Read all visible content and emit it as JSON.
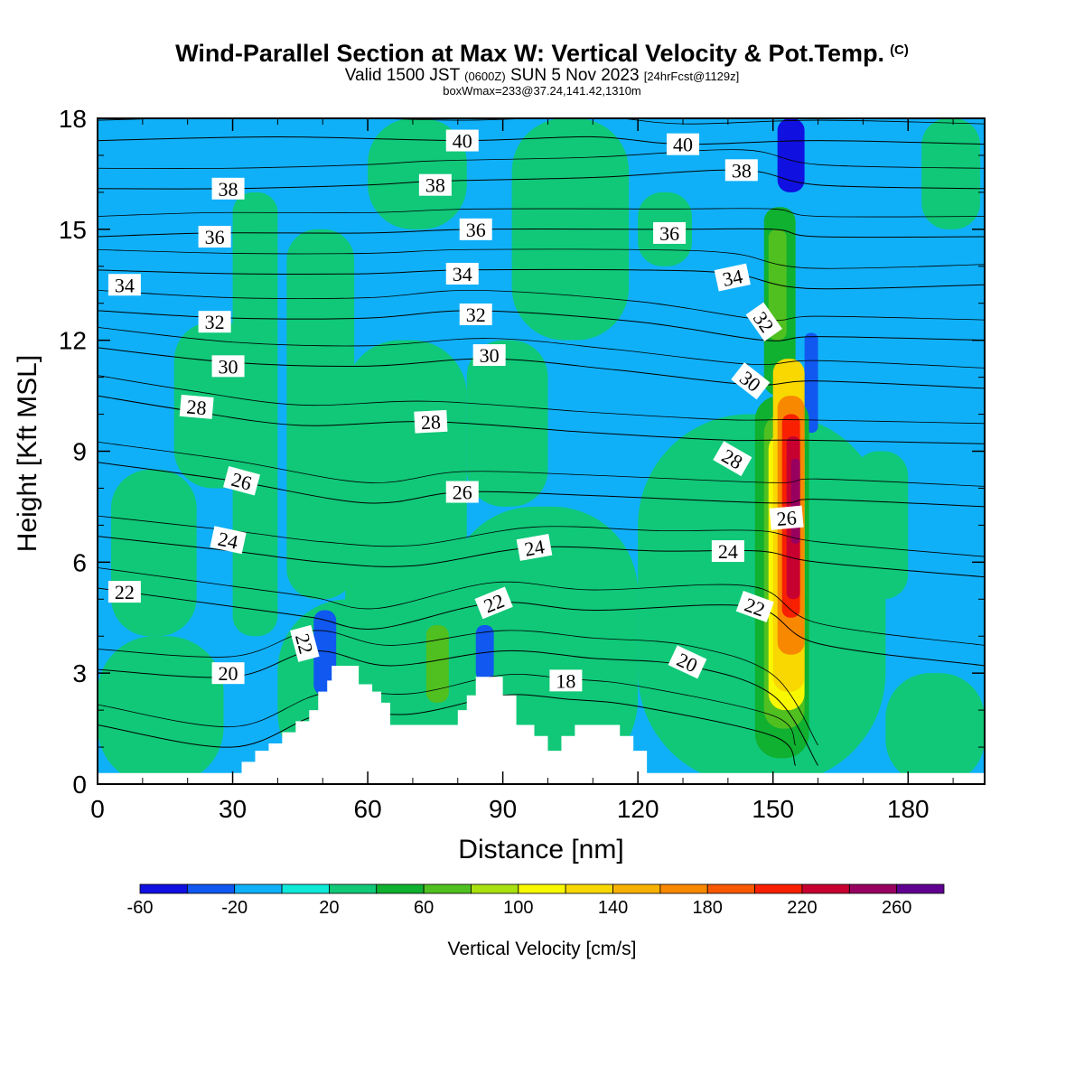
{
  "titles": {
    "main": "Wind-Parallel Section at Max W: Vertical Velocity & Pot.Temp.",
    "copyright": "(C)",
    "valid_prefix": "Valid 1500 JST",
    "valid_utc": "(0600Z)",
    "valid_date": "SUN 5 Nov 2023",
    "forecast": "[24hrFcst@1129z]",
    "box_info": "boxWmax=233@37.24,141.42,1310m"
  },
  "chart_data": {
    "type": "heatmap",
    "xlabel": "Distance [nm]",
    "ylabel": "Height [Kft MSL]",
    "xlim": [
      0,
      197
    ],
    "ylim": [
      0,
      18
    ],
    "x_ticks": [
      0,
      30,
      60,
      90,
      120,
      150,
      180
    ],
    "y_ticks": [
      0,
      3,
      6,
      9,
      12,
      15,
      18
    ],
    "colorbar": {
      "label": "Vertical Velocity [cm/s]",
      "levels": [
        -60,
        -40,
        -20,
        0,
        20,
        40,
        60,
        80,
        100,
        120,
        140,
        160,
        180,
        200,
        220,
        240,
        260,
        280
      ],
      "tick_labels": [
        -60,
        -20,
        20,
        60,
        100,
        140,
        180,
        220,
        260
      ],
      "colors": [
        "#1010e0",
        "#1058f0",
        "#10b0f8",
        "#10e8d8",
        "#10c878",
        "#10b030",
        "#50c020",
        "#a8e010",
        "#f8f800",
        "#f8d800",
        "#f8b000",
        "#f88800",
        "#f85800",
        "#f82000",
        "#c80030",
        "#980060",
        "#600090"
      ]
    },
    "terrain": [
      [
        0,
        0.3
      ],
      [
        30,
        0.3
      ],
      [
        32,
        0.6
      ],
      [
        35,
        0.9
      ],
      [
        38,
        1.1
      ],
      [
        41,
        1.4
      ],
      [
        44,
        1.7
      ],
      [
        47,
        2.0
      ],
      [
        49,
        2.5
      ],
      [
        51,
        2.8
      ],
      [
        52,
        3.2
      ],
      [
        56,
        3.2
      ],
      [
        58,
        2.7
      ],
      [
        61,
        2.5
      ],
      [
        63,
        2.2
      ],
      [
        65,
        1.6
      ],
      [
        70,
        1.6
      ],
      [
        75,
        1.6
      ],
      [
        78,
        1.6
      ],
      [
        80,
        2.0
      ],
      [
        82,
        2.4
      ],
      [
        84,
        2.9
      ],
      [
        88,
        2.9
      ],
      [
        90,
        2.4
      ],
      [
        93,
        1.6
      ],
      [
        97,
        1.3
      ],
      [
        100,
        0.9
      ],
      [
        103,
        1.3
      ],
      [
        106,
        1.6
      ],
      [
        113,
        1.6
      ],
      [
        116,
        1.3
      ],
      [
        119,
        0.9
      ],
      [
        122,
        0.3
      ],
      [
        197,
        0.3
      ]
    ],
    "vertical_velocity_cells": [
      {
        "x": [
          0,
          197
        ],
        "y": [
          0,
          18
        ],
        "w": -20
      },
      {
        "x": [
          0,
          28
        ],
        "y": [
          0,
          4
        ],
        "w": 20
      },
      {
        "x": [
          3,
          22
        ],
        "y": [
          4,
          8.5
        ],
        "w": 20
      },
      {
        "x": [
          17,
          36
        ],
        "y": [
          8,
          12.5
        ],
        "w": 20
      },
      {
        "x": [
          30,
          40
        ],
        "y": [
          4,
          16
        ],
        "w": 20
      },
      {
        "x": [
          40,
          75
        ],
        "y": [
          0,
          5
        ],
        "w": 20
      },
      {
        "x": [
          42,
          57
        ],
        "y": [
          5,
          15
        ],
        "w": 20
      },
      {
        "x": [
          55,
          82
        ],
        "y": [
          0,
          12
        ],
        "w": 20
      },
      {
        "x": [
          78,
          120
        ],
        "y": [
          0,
          7.5
        ],
        "w": 20
      },
      {
        "x": [
          82,
          100
        ],
        "y": [
          7.5,
          12
        ],
        "w": 20
      },
      {
        "x": [
          92,
          118
        ],
        "y": [
          12,
          18
        ],
        "w": 20
      },
      {
        "x": [
          60,
          82
        ],
        "y": [
          15,
          18
        ],
        "w": 20
      },
      {
        "x": [
          120,
          175
        ],
        "y": [
          0,
          10
        ],
        "w": 20
      },
      {
        "x": [
          175,
          197
        ],
        "y": [
          0,
          3
        ],
        "w": 20
      },
      {
        "x": [
          120,
          132
        ],
        "y": [
          14,
          16
        ],
        "w": 20
      },
      {
        "x": [
          183,
          196
        ],
        "y": [
          15,
          18
        ],
        "w": 20
      },
      {
        "x": [
          168,
          180
        ],
        "y": [
          5,
          9
        ],
        "w": 20
      },
      {
        "x": [
          48,
          53
        ],
        "y": [
          2.4,
          4.7
        ],
        "w": -40
      },
      {
        "x": [
          84,
          88
        ],
        "y": [
          2.8,
          4.3
        ],
        "w": -40
      },
      {
        "x": [
          151,
          157
        ],
        "y": [
          16,
          18
        ],
        "w": -60
      },
      {
        "x": [
          157,
          160
        ],
        "y": [
          9.5,
          12.2
        ],
        "w": -40
      },
      {
        "x": [
          73,
          78
        ],
        "y": [
          2.2,
          4.3
        ],
        "w": 60
      },
      {
        "x": [
          146,
          158
        ],
        "y": [
          0.7,
          10.5
        ],
        "w": 40
      },
      {
        "x": [
          148,
          155
        ],
        "y": [
          10.5,
          15.6
        ],
        "w": 40
      },
      {
        "x": [
          149,
          153
        ],
        "y": [
          12,
          15
        ],
        "w": 60
      },
      {
        "x": [
          148,
          157
        ],
        "y": [
          1.5,
          10
        ],
        "w": 60
      },
      {
        "x": [
          149,
          157
        ],
        "y": [
          2,
          9.5
        ],
        "w": 100
      },
      {
        "x": [
          150,
          157
        ],
        "y": [
          2.5,
          11.5
        ],
        "w": 120
      },
      {
        "x": [
          151,
          157
        ],
        "y": [
          3.5,
          10.5
        ],
        "w": 160
      },
      {
        "x": [
          152,
          156
        ],
        "y": [
          4.5,
          10
        ],
        "w": 200
      },
      {
        "x": [
          153,
          156
        ],
        "y": [
          5,
          9.4
        ],
        "w": 220
      },
      {
        "x": [
          154,
          156
        ],
        "y": [
          6.5,
          8.8
        ],
        "w": 240
      }
    ],
    "isentropes": [
      {
        "label": "18",
        "points": [
          [
            0,
            1.6
          ],
          [
            30,
            1.0
          ],
          [
            50,
            1.9
          ],
          [
            70,
            1.9
          ],
          [
            90,
            2.4
          ],
          [
            104,
            2.3
          ],
          [
            120,
            2.1
          ],
          [
            150,
            1.3
          ],
          [
            155,
            0.5
          ]
        ]
      },
      {
        "label": "20",
        "points": [
          [
            0,
            3.1
          ],
          [
            30,
            2.9
          ],
          [
            48,
            3.6
          ],
          [
            65,
            3.2
          ],
          [
            90,
            3.6
          ],
          [
            110,
            3.4
          ],
          [
            131,
            3.2
          ],
          [
            150,
            2.4
          ],
          [
            160,
            0.5
          ]
        ]
      },
      {
        "label": "22",
        "points": [
          [
            0,
            5.3
          ],
          [
            30,
            4.8
          ],
          [
            48,
            4.5
          ],
          [
            62,
            4.2
          ],
          [
            88,
            4.9
          ],
          [
            110,
            4.7
          ],
          [
            145,
            4.8
          ],
          [
            160,
            3.8
          ],
          [
            197,
            3.2
          ]
        ]
      },
      {
        "label": "24",
        "points": [
          [
            0,
            6.7
          ],
          [
            30,
            6.3
          ],
          [
            50,
            6.0
          ],
          [
            70,
            5.9
          ],
          [
            97,
            6.4
          ],
          [
            125,
            6.3
          ],
          [
            147,
            6.3
          ],
          [
            160,
            6.0
          ],
          [
            197,
            5.6
          ]
        ]
      },
      {
        "label": "26",
        "points": [
          [
            0,
            8.7
          ],
          [
            30,
            8.2
          ],
          [
            60,
            7.6
          ],
          [
            81,
            7.9
          ],
          [
            110,
            7.8
          ],
          [
            150,
            7.6
          ],
          [
            160,
            7.7
          ],
          [
            197,
            7.5
          ]
        ]
      },
      {
        "label": "28",
        "points": [
          [
            0,
            10.5
          ],
          [
            20,
            10.1
          ],
          [
            45,
            9.7
          ],
          [
            74,
            9.8
          ],
          [
            110,
            9.5
          ],
          [
            140,
            9.3
          ],
          [
            156,
            9.3
          ],
          [
            197,
            9.2
          ]
        ]
      },
      {
        "label": "30",
        "points": [
          [
            0,
            11.8
          ],
          [
            30,
            11.4
          ],
          [
            60,
            11.3
          ],
          [
            87,
            11.5
          ],
          [
            115,
            11.2
          ],
          [
            145,
            10.8
          ],
          [
            160,
            10.9
          ],
          [
            197,
            10.7
          ]
        ]
      },
      {
        "label": "32",
        "points": [
          [
            0,
            12.8
          ],
          [
            30,
            12.6
          ],
          [
            60,
            12.6
          ],
          [
            84,
            12.8
          ],
          [
            120,
            12.5
          ],
          [
            148,
            12.0
          ],
          [
            160,
            12.1
          ],
          [
            197,
            12.0
          ]
        ]
      },
      {
        "label": "34",
        "points": [
          [
            0,
            13.9
          ],
          [
            30,
            13.8
          ],
          [
            60,
            13.8
          ],
          [
            81,
            13.9
          ],
          [
            120,
            13.9
          ],
          [
            141,
            13.8
          ],
          [
            158,
            13.4
          ],
          [
            197,
            13.5
          ]
        ]
      },
      {
        "label": "36",
        "points": [
          [
            0,
            14.8
          ],
          [
            26,
            14.9
          ],
          [
            60,
            14.9
          ],
          [
            84,
            15.0
          ],
          [
            127,
            15.0
          ],
          [
            150,
            15.0
          ],
          [
            160,
            14.8
          ],
          [
            197,
            14.8
          ]
        ]
      },
      {
        "label": "38",
        "points": [
          [
            0,
            16.1
          ],
          [
            29,
            16.1
          ],
          [
            60,
            16.2
          ],
          [
            75,
            16.3
          ],
          [
            110,
            16.4
          ],
          [
            143,
            16.6
          ],
          [
            160,
            16.2
          ],
          [
            197,
            16.1
          ]
        ]
      },
      {
        "label": "40",
        "points": [
          [
            0,
            17.4
          ],
          [
            40,
            17.5
          ],
          [
            81,
            17.4
          ],
          [
            110,
            17.5
          ],
          [
            130,
            17.3
          ],
          [
            160,
            17.4
          ],
          [
            197,
            17.3
          ]
        ]
      }
    ],
    "contour_labels": [
      {
        "text": "40",
        "x": 81,
        "y": 17.4,
        "rot": 0
      },
      {
        "text": "40",
        "x": 130,
        "y": 17.3,
        "rot": 0
      },
      {
        "text": "38",
        "x": 29,
        "y": 16.1,
        "rot": 0
      },
      {
        "text": "38",
        "x": 75,
        "y": 16.2,
        "rot": 0
      },
      {
        "text": "38",
        "x": 143,
        "y": 16.6,
        "rot": 0
      },
      {
        "text": "36",
        "x": 26,
        "y": 14.8,
        "rot": 0
      },
      {
        "text": "36",
        "x": 84,
        "y": 15.0,
        "rot": 0
      },
      {
        "text": "36",
        "x": 127,
        "y": 14.9,
        "rot": 0
      },
      {
        "text": "34",
        "x": 6,
        "y": 13.5,
        "rot": 0
      },
      {
        "text": "34",
        "x": 81,
        "y": 13.8,
        "rot": 0
      },
      {
        "text": "34",
        "x": 141,
        "y": 13.7,
        "rot": -12
      },
      {
        "text": "32",
        "x": 26,
        "y": 12.5,
        "rot": 0
      },
      {
        "text": "32",
        "x": 84,
        "y": 12.7,
        "rot": 0
      },
      {
        "text": "32",
        "x": 148,
        "y": 12.5,
        "rot": 55
      },
      {
        "text": "30",
        "x": 29,
        "y": 11.3,
        "rot": 0
      },
      {
        "text": "30",
        "x": 87,
        "y": 11.6,
        "rot": 0
      },
      {
        "text": "30",
        "x": 145,
        "y": 10.9,
        "rot": 38
      },
      {
        "text": "28",
        "x": 22,
        "y": 10.2,
        "rot": 5
      },
      {
        "text": "28",
        "x": 74,
        "y": 9.8,
        "rot": -3
      },
      {
        "text": "28",
        "x": 141,
        "y": 8.8,
        "rot": 30
      },
      {
        "text": "26",
        "x": 32,
        "y": 8.2,
        "rot": 15
      },
      {
        "text": "26",
        "x": 81,
        "y": 7.9,
        "rot": 0
      },
      {
        "text": "26",
        "x": 153,
        "y": 7.2,
        "rot": -5
      },
      {
        "text": "24",
        "x": 29,
        "y": 6.6,
        "rot": 12
      },
      {
        "text": "24",
        "x": 97,
        "y": 6.4,
        "rot": -10
      },
      {
        "text": "24",
        "x": 140,
        "y": 6.3,
        "rot": 0
      },
      {
        "text": "22",
        "x": 6,
        "y": 5.2,
        "rot": 0
      },
      {
        "text": "22",
        "x": 46,
        "y": 3.8,
        "rot": 75
      },
      {
        "text": "22",
        "x": 88,
        "y": 4.9,
        "rot": -22
      },
      {
        "text": "22",
        "x": 146,
        "y": 4.8,
        "rot": 20
      },
      {
        "text": "20",
        "x": 29,
        "y": 3.0,
        "rot": 0
      },
      {
        "text": "20",
        "x": 131,
        "y": 3.3,
        "rot": 25
      },
      {
        "text": "18",
        "x": 104,
        "y": 2.8,
        "rot": 0
      }
    ]
  }
}
